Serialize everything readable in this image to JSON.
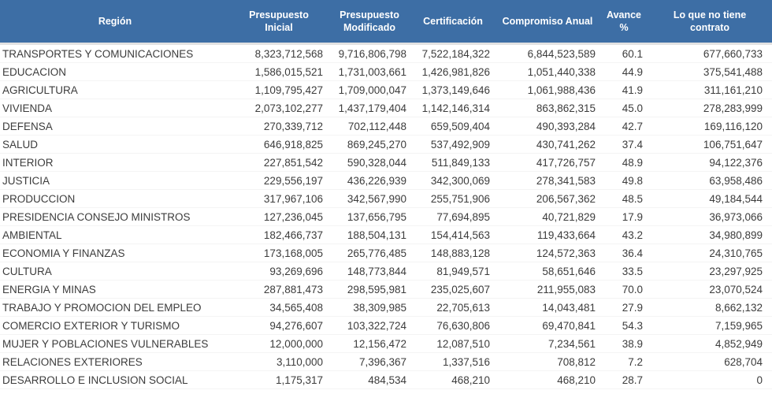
{
  "colors": {
    "header_bg": "#3d6ea5",
    "header_text": "#ffffff",
    "body_text": "#3c3c3c",
    "row_divider": "#f4f4f4"
  },
  "chart_data": {
    "type": "table",
    "columns": [
      "Región",
      "Presupuesto Inicial",
      "Presupuesto Modificado",
      "Certificación",
      "Compromiso Anual",
      "Avance %",
      "Lo que no tiene contrato"
    ],
    "rows": [
      [
        "TRANSPORTES Y COMUNICACIONES",
        8323712568,
        9716806798,
        7522184322,
        6844523589,
        60.1,
        677660733
      ],
      [
        "EDUCACION",
        1586015521,
        1731003661,
        1426981826,
        1051440338,
        44.9,
        375541488
      ],
      [
        "AGRICULTURA",
        1109795427,
        1709000047,
        1373149646,
        1061988436,
        41.9,
        311161210
      ],
      [
        "VIVIENDA",
        2073102277,
        1437179404,
        1142146314,
        863862315,
        45.0,
        278283999
      ],
      [
        "DEFENSA",
        270339712,
        702112448,
        659509404,
        490393284,
        42.7,
        169116120
      ],
      [
        "SALUD",
        646918825,
        869245270,
        537492909,
        430741262,
        37.4,
        106751647
      ],
      [
        "INTERIOR",
        227851542,
        590328044,
        511849133,
        417726757,
        48.9,
        94122376
      ],
      [
        "JUSTICIA",
        229556197,
        436226939,
        342300069,
        278341583,
        49.8,
        63958486
      ],
      [
        "PRODUCCION",
        317967106,
        342567990,
        255751906,
        206567362,
        48.5,
        49184544
      ],
      [
        "PRESIDENCIA CONSEJO MINISTROS",
        127236045,
        137656795,
        77694895,
        40721829,
        17.9,
        36973066
      ],
      [
        "AMBIENTAL",
        182466737,
        188504131,
        154414563,
        119433664,
        43.2,
        34980899
      ],
      [
        "ECONOMIA Y FINANZAS",
        173168005,
        265776485,
        148883128,
        124572363,
        36.4,
        24310765
      ],
      [
        "CULTURA",
        93269696,
        148773844,
        81949571,
        58651646,
        33.5,
        23297925
      ],
      [
        "ENERGIA Y MINAS",
        287881473,
        298595981,
        235025607,
        211955083,
        70.0,
        23070524
      ],
      [
        "TRABAJO Y PROMOCION DEL EMPLEO",
        34565408,
        38309985,
        22705613,
        14043481,
        27.9,
        8662132
      ],
      [
        "COMERCIO EXTERIOR Y TURISMO",
        94276607,
        103322724,
        76630806,
        69470841,
        54.3,
        7159965
      ],
      [
        "MUJER Y POBLACIONES VULNERABLES",
        12000000,
        12156472,
        12087510,
        7234561,
        38.9,
        4852949
      ],
      [
        "RELACIONES EXTERIORES",
        3110000,
        7396367,
        1337516,
        708812,
        7.2,
        628704
      ],
      [
        "DESARROLLO E INCLUSION SOCIAL",
        1175317,
        484534,
        468210,
        468210,
        28.7,
        0
      ]
    ]
  }
}
